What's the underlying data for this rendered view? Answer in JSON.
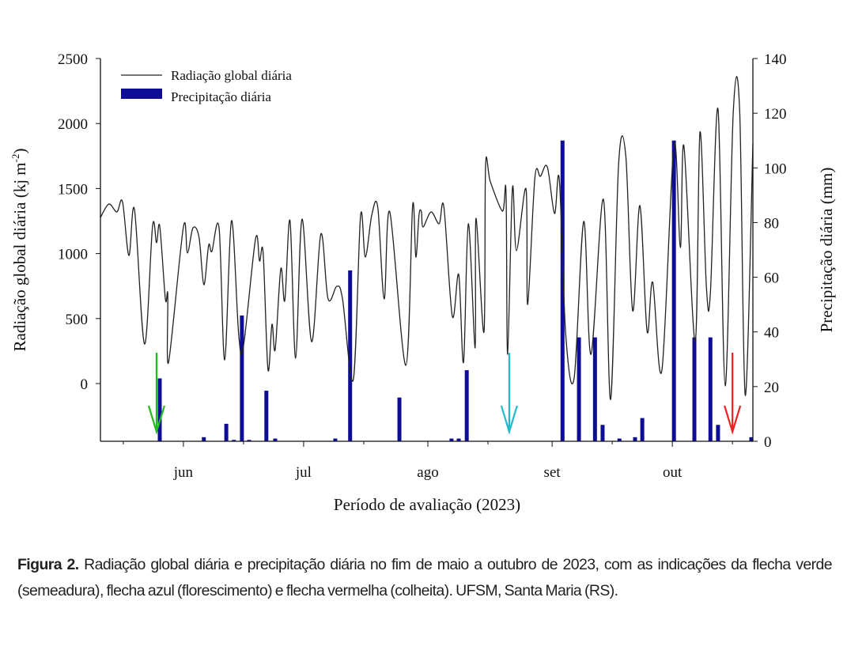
{
  "chart_data": {
    "type": "bar+line",
    "xlabel": "Período de avaliação (2023)",
    "ylabel_left": "Radiação global diária (kj m⁻²)",
    "ylabel_left_main": "Radiação global diária (kj m",
    "ylabel_left_sup": "-2",
    "ylabel_left_end": ")",
    "ylabel_right": "Precipitação diária (mm)",
    "ylim_left": [
      -444,
      2500
    ],
    "ylim_right": [
      0,
      140
    ],
    "yticks_left": [
      0,
      500,
      1000,
      1500,
      2000,
      2500
    ],
    "yticks_right": [
      0,
      20,
      40,
      60,
      80,
      100,
      120,
      140
    ],
    "x_unit": "days relative to 1 June 2023",
    "xlim": [
      -20.7,
      142.1
    ],
    "xticks": [
      {
        "label": "jun",
        "day": 0
      },
      {
        "label": "jul",
        "day": 30
      },
      {
        "label": "ago",
        "day": 61
      },
      {
        "label": "set",
        "day": 92
      },
      {
        "label": "out",
        "day": 122
      }
    ],
    "legend": {
      "position": "top-left",
      "entries": [
        "Radiação global diária",
        "Precipitação diária"
      ]
    },
    "colors": {
      "line": "#222222",
      "bar": "#0d0d96",
      "sowing_arrow": "#22bb22",
      "flowering_arrow": "#22bbcc",
      "harvest_arrow": "#ee2222"
    },
    "series": [
      {
        "name": "Radiação global diária",
        "axis": "left",
        "type": "line",
        "points": [
          [
            -20.7,
            1277
          ],
          [
            -18.6,
            1381
          ],
          [
            -16.6,
            1320
          ],
          [
            -15.2,
            1399
          ],
          [
            -13.6,
            985
          ],
          [
            -12.2,
            1338
          ],
          [
            -9.7,
            304
          ],
          [
            -7.7,
            1210
          ],
          [
            -6.7,
            1083
          ],
          [
            -5.9,
            1210
          ],
          [
            -4.5,
            651
          ],
          [
            -3.9,
            687
          ],
          [
            -3.7,
            164
          ],
          [
            0,
            1204
          ],
          [
            1,
            1004
          ],
          [
            2.4,
            1198
          ],
          [
            3.9,
            1125
          ],
          [
            5.1,
            760
          ],
          [
            6.3,
            1064
          ],
          [
            7.1,
            1016
          ],
          [
            8.9,
            1198
          ],
          [
            10.3,
            182
          ],
          [
            12.0,
            1253
          ],
          [
            13.8,
            377
          ],
          [
            15.0,
            292
          ],
          [
            18.0,
            1113
          ],
          [
            19.0,
            943
          ],
          [
            19.9,
            1004
          ],
          [
            21.1,
            109
          ],
          [
            22.1,
            456
          ],
          [
            22.9,
            262
          ],
          [
            24.3,
            882
          ],
          [
            25.3,
            639
          ],
          [
            26.6,
            1253
          ],
          [
            28.0,
            195
          ],
          [
            29.6,
            1265
          ],
          [
            32.0,
            322
          ],
          [
            34.3,
            1150
          ],
          [
            36.1,
            651
          ],
          [
            38.3,
            748
          ],
          [
            39.7,
            651
          ],
          [
            42.4,
            30
          ],
          [
            44.2,
            1290
          ],
          [
            45.4,
            973
          ],
          [
            47.0,
            1296
          ],
          [
            48.5,
            1356
          ],
          [
            50.1,
            651
          ],
          [
            51.5,
            1320
          ],
          [
            55.5,
            140
          ],
          [
            57.2,
            1369
          ],
          [
            58.0,
            973
          ],
          [
            59.4,
            1320
          ],
          [
            58.8,
            1300
          ],
          [
            59.8,
            1204
          ],
          [
            61.8,
            1320
          ],
          [
            63.8,
            1229
          ],
          [
            65.0,
            1356
          ],
          [
            67.1,
            517
          ],
          [
            68.7,
            839
          ],
          [
            69.9,
            164
          ],
          [
            71.1,
            1229
          ],
          [
            72.8,
            274
          ],
          [
            73.0,
            1271
          ],
          [
            75.0,
            395
          ],
          [
            75.4,
            1673
          ],
          [
            76.6,
            1551
          ],
          [
            79.6,
            1326
          ],
          [
            80.5,
            1472
          ],
          [
            80.9,
            225
          ],
          [
            82.1,
            1502
          ],
          [
            83.1,
            1022
          ],
          [
            85.5,
            1496
          ],
          [
            85.9,
            608
          ],
          [
            87.7,
            1582
          ],
          [
            89.1,
            1594
          ],
          [
            90.8,
            1667
          ],
          [
            92.6,
            1308
          ],
          [
            93.8,
            1569
          ],
          [
            95.4,
            377
          ],
          [
            97.5,
            43
          ],
          [
            99.9,
            1247
          ],
          [
            101.7,
            225
          ],
          [
            104.8,
            1417
          ],
          [
            106.6,
            -122
          ],
          [
            108.6,
            1691
          ],
          [
            110.4,
            1746
          ],
          [
            112.1,
            560
          ],
          [
            113.9,
            1369
          ],
          [
            115.7,
            401
          ],
          [
            117.1,
            779
          ],
          [
            119.4,
            103
          ],
          [
            122.4,
            1837
          ],
          [
            124.0,
            1046
          ],
          [
            124.9,
            1825
          ],
          [
            127.7,
            322
          ],
          [
            128.9,
            1934
          ],
          [
            130.5,
            742
          ],
          [
            131.5,
            700
          ],
          [
            133.4,
            2111
          ],
          [
            135.2,
            -18
          ],
          [
            137.2,
            2086
          ],
          [
            138.8,
            2099
          ],
          [
            140.2,
            -91
          ],
          [
            143.5,
            1843
          ]
        ]
      },
      {
        "name": "Precipitação diária",
        "axis": "right",
        "type": "bar",
        "points": [
          [
            -5.9,
            23
          ],
          [
            5.1,
            1.5
          ],
          [
            10.7,
            6.4
          ],
          [
            12.6,
            0.5
          ],
          [
            14.6,
            46
          ],
          [
            16.4,
            0.5
          ],
          [
            20.7,
            18.5
          ],
          [
            22.9,
            1
          ],
          [
            37.9,
            1
          ],
          [
            41.6,
            62.5
          ],
          [
            53.9,
            16
          ],
          [
            66.9,
            1
          ],
          [
            68.7,
            1
          ],
          [
            70.7,
            26
          ],
          [
            94.6,
            110
          ],
          [
            98.7,
            38
          ],
          [
            102.7,
            38
          ],
          [
            104.6,
            6
          ],
          [
            108.8,
            1
          ],
          [
            112.7,
            1.5
          ],
          [
            114.5,
            8.5
          ],
          [
            122.4,
            110
          ],
          [
            127.5,
            38
          ],
          [
            131.5,
            38
          ],
          [
            133.4,
            6
          ],
          [
            141.7,
            1.5
          ]
        ]
      }
    ],
    "annotations": [
      {
        "label": "semeadura",
        "color": "green",
        "day": -6.7
      },
      {
        "label": "florescimento",
        "color": "cyan",
        "day": 81.3
      },
      {
        "label": "colheita",
        "color": "red",
        "day": 137.0
      }
    ]
  },
  "caption": {
    "label": "Figura 2.",
    "text": " Radiação global diária e precipitação diária no fim de maio a outubro de 2023, com as indicações da flecha verde (semeadura), flecha azul (florescimento) e flecha vermelha (colheita). UFSM, Santa Maria (RS)."
  }
}
